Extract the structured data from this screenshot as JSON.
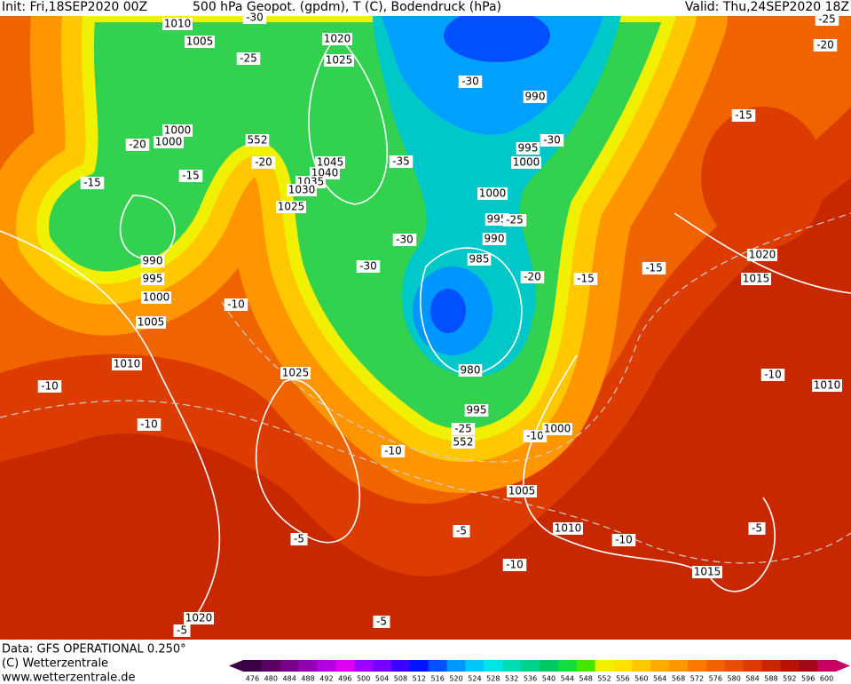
{
  "header": {
    "init": "Init: Fri,18SEP2020 00Z",
    "title": "500 hPa Geopot. (gpdm), T (C), Bodendruck (hPa)",
    "valid": "Valid: Thu,24SEP2020 18Z"
  },
  "footer": {
    "data": "Data: GFS OPERATIONAL 0.250°",
    "copyright": "(C) Wetterzentrale",
    "url": "www.wetterzentrale.de"
  },
  "map": {
    "labels": [
      "1010",
      "1005",
      "1020",
      "1025",
      "-25",
      "-30",
      "1000",
      "1000",
      "-20",
      "552",
      "-20",
      "-15",
      "-15",
      "1045",
      "1040",
      "1035",
      "1030",
      "1025",
      "-35",
      "-30",
      "990",
      "995",
      "-30",
      "1000",
      "1000",
      "995",
      "-25",
      "990",
      "-30",
      "985",
      "-30",
      "-20",
      "-15",
      "-15",
      "1020",
      "1015",
      "-15",
      "-25",
      "-20",
      "990",
      "995",
      "1000",
      "1005",
      "-10",
      "1010",
      "-10",
      "1025",
      "-10",
      "980",
      "995",
      "-25",
      "552",
      "-10",
      "1000",
      "-10",
      "1005",
      "-5",
      "1010",
      "-10",
      "-10",
      "-5",
      "-5",
      "1015",
      "-10",
      "1010",
      "1020",
      "-5",
      "-5"
    ]
  },
  "colorbar": {
    "levels": [
      476,
      480,
      484,
      488,
      492,
      496,
      500,
      504,
      508,
      512,
      516,
      520,
      524,
      528,
      532,
      536,
      540,
      544,
      548,
      552,
      556,
      560,
      564,
      568,
      572,
      576,
      580,
      584,
      588,
      592,
      596,
      600
    ],
    "colors": [
      "#3c0046",
      "#5a0064",
      "#78008c",
      "#9600b4",
      "#b400dc",
      "#dc00f0",
      "#a000ff",
      "#7800ff",
      "#3c00ff",
      "#0014ff",
      "#0050ff",
      "#0096ff",
      "#00c8ff",
      "#00e6e6",
      "#00dcb4",
      "#00d28c",
      "#00c864",
      "#14dc3c",
      "#46e600",
      "#f0f000",
      "#ffe100",
      "#ffc800",
      "#ffaa00",
      "#ff9600",
      "#ff7800",
      "#f06400",
      "#e65000",
      "#dc3c00",
      "#c82800",
      "#b41400",
      "#a00a14",
      "#c80064"
    ]
  }
}
